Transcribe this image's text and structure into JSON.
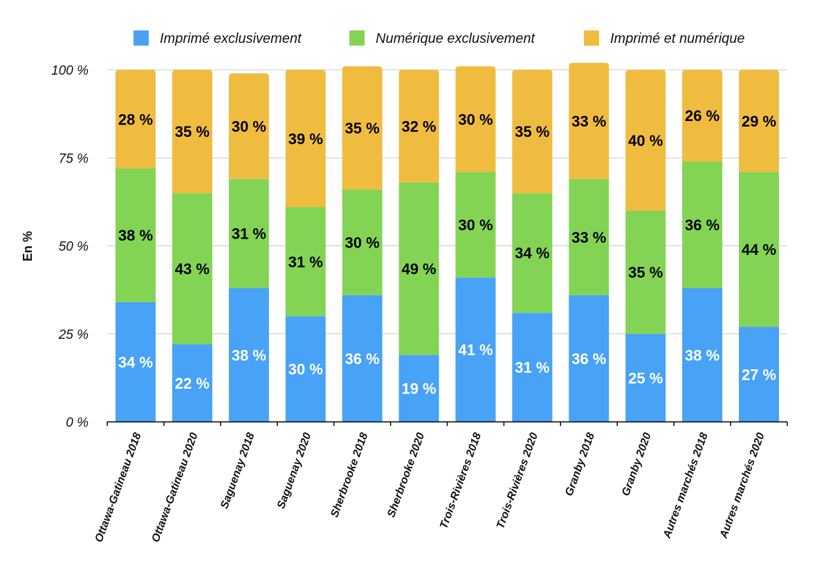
{
  "chart_data": {
    "type": "bar",
    "stacked": true,
    "ylabel": "En %",
    "ylim": [
      0,
      100
    ],
    "y_ticks": [
      {
        "value": 0,
        "label": "0 %"
      },
      {
        "value": 25,
        "label": "25 %"
      },
      {
        "value": 50,
        "label": "50 %"
      },
      {
        "value": 75,
        "label": "75 %"
      },
      {
        "value": 100,
        "label": "100 %"
      }
    ],
    "grid": true,
    "legend_position": "top",
    "categories": [
      "Ottawa-Gatineau 2018",
      "Ottawa-Gatineau 2020",
      "Saguenay 2018",
      "Saguenay 2020",
      "Sherbrooke 2018",
      "Sherbrooke 2020",
      "Trois-Rivières 2018",
      "Trois-Rivières 2020",
      "Granby 2018",
      "Granby 2020",
      "Autres marchés 2018",
      "Autres marchés 2020"
    ],
    "series": [
      {
        "name": "Imprimé exclusivement",
        "color": "#48a2f6",
        "label_color": "#ffffff",
        "values": [
          34,
          22,
          38,
          30,
          36,
          19,
          41,
          31,
          36,
          25,
          38,
          27
        ],
        "labels": [
          "34 %",
          "22 %",
          "38 %",
          "30 %",
          "36 %",
          "19 %",
          "41 %",
          "31 %",
          "36 %",
          "25 %",
          "38 %",
          "27 %"
        ]
      },
      {
        "name": "Numérique exclusivement",
        "color": "#83d454",
        "label_color": "#000000",
        "values": [
          38,
          43,
          31,
          31,
          30,
          49,
          30,
          34,
          33,
          35,
          36,
          44
        ],
        "labels": [
          "38 %",
          "43 %",
          "31 %",
          "31 %",
          "30 %",
          "49 %",
          "30 %",
          "34 %",
          "33 %",
          "35 %",
          "36 %",
          "44 %"
        ]
      },
      {
        "name": "Imprimé et numérique",
        "color": "#f0bc40",
        "label_color": "#000000",
        "values": [
          28,
          35,
          30,
          39,
          35,
          32,
          30,
          35,
          33,
          40,
          26,
          29
        ],
        "labels": [
          "28 %",
          "35 %",
          "30 %",
          "39 %",
          "35 %",
          "32 %",
          "30 %",
          "35 %",
          "33 %",
          "40 %",
          "26 %",
          "29 %"
        ]
      }
    ]
  }
}
